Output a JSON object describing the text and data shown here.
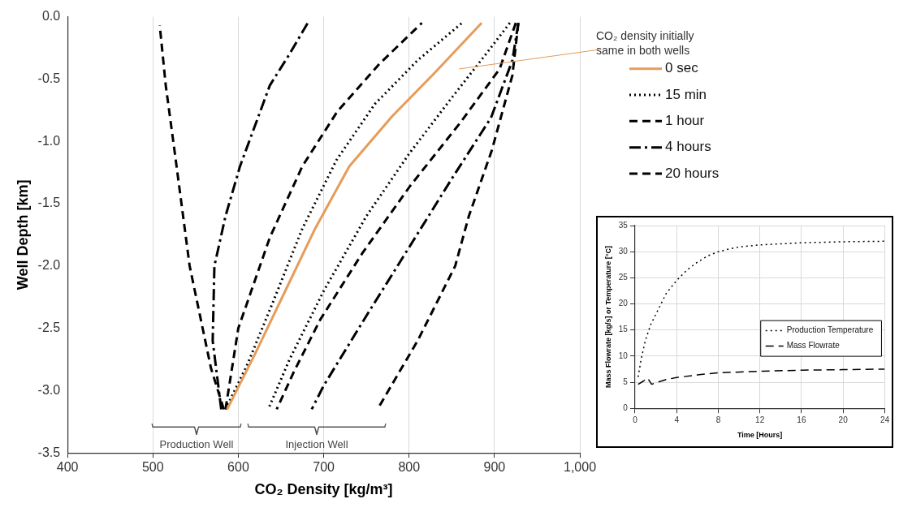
{
  "chart_data": [
    {
      "type": "line",
      "xlabel": "CO₂ Density [kg/m³]",
      "ylabel": "Well Depth [km]",
      "xlim": [
        400,
        1000
      ],
      "xticks": [
        400,
        500,
        600,
        700,
        800,
        900,
        {
          "value": 1000,
          "label": "1,000"
        }
      ],
      "ylim": [
        -3.5,
        0
      ],
      "yticks": [
        {
          "value": -3.5,
          "label": "-3.5"
        },
        {
          "value": -3,
          "label": "-3.0"
        },
        {
          "value": -2.5,
          "label": "-2.5"
        },
        {
          "value": -2,
          "label": "-2.0"
        },
        {
          "value": -1.5,
          "label": "-1.5"
        },
        {
          "value": -1,
          "label": "-1.0"
        },
        {
          "value": -0.5,
          "label": "-0.5"
        },
        {
          "value": 0,
          "label": "0.0"
        }
      ],
      "grid": "x",
      "legend": "right",
      "series": [
        {
          "name": "0 sec",
          "color": "#e69c5a",
          "line_style": "solid",
          "x": [
            587,
            620,
            655,
            690,
            730,
            780,
            830,
            885
          ],
          "values": [
            -3.15,
            -2.7,
            -2.2,
            -1.7,
            -1.2,
            -0.8,
            -0.45,
            -0.05
          ]
        },
        {
          "name": "15 min",
          "color": "#000000",
          "line_style": "dotted",
          "x": [
            585,
            610,
            640,
            675,
            715,
            760,
            810,
            862,
            null,
            918,
            890,
            850,
            800,
            750,
            700,
            660,
            635
          ],
          "values": [
            -3.15,
            -2.8,
            -2.3,
            -1.7,
            -1.15,
            -0.7,
            -0.35,
            -0.05,
            null,
            -0.05,
            -0.3,
            -0.65,
            -1.1,
            -1.6,
            -2.2,
            -2.75,
            -3.15
          ]
        },
        {
          "name": "1 hour",
          "color": "#000000",
          "line_style": "dashed",
          "x": [
            585,
            600,
            637,
            675,
            716,
            765,
            815,
            null,
            925,
            906,
            860,
            801,
            745,
            696,
            665,
            645
          ],
          "values": [
            -3.15,
            -2.5,
            -1.77,
            -1.2,
            -0.76,
            -0.38,
            -0.05,
            null,
            -0.05,
            -0.42,
            -0.85,
            -1.36,
            -1.9,
            -2.43,
            -2.85,
            -3.15
          ]
        },
        {
          "name": "4 hours",
          "color": "#000000",
          "line_style": "dashdot",
          "x": [
            580,
            570,
            572,
            585,
            602,
            637,
            660,
            683,
            null,
            928,
            921,
            896,
            850,
            801,
            750,
            700,
            686
          ],
          "values": [
            -3.15,
            -2.6,
            -2.0,
            -1.6,
            -1.2,
            -0.55,
            -0.3,
            -0.03,
            null,
            -0.05,
            -0.35,
            -0.81,
            -1.3,
            -1.84,
            -2.4,
            -2.96,
            -3.15
          ]
        },
        {
          "name": "20 hours",
          "color": "#000000",
          "line_style": "dashed",
          "x": [
            583,
            568,
            543,
            525,
            515,
            508,
            null,
            928,
            921,
            897,
            870,
            854,
            810,
            763
          ],
          "values": [
            -3.15,
            -2.82,
            -2.0,
            -1.06,
            -0.55,
            -0.07,
            null,
            -0.05,
            -0.47,
            -1.07,
            -1.6,
            -2.0,
            -2.6,
            -3.15
          ]
        }
      ],
      "annotations": [
        "CO₂ density initially same in both wells",
        "Production Well",
        "Injection Well"
      ]
    },
    {
      "type": "line",
      "xlabel": "Time [Hours]",
      "ylabel": "Mass Flowrate [kg/s] or Temperature [°C]",
      "xlim": [
        0,
        24
      ],
      "xticks": [
        0,
        4,
        8,
        12,
        16,
        20,
        24
      ],
      "ylim": [
        0,
        35
      ],
      "yticks": [
        0,
        5,
        10,
        15,
        20,
        25,
        30,
        35
      ],
      "grid": true,
      "legend": "right",
      "series": [
        {
          "name": "Production Temperature",
          "color": "#000000",
          "line_style": "dotted",
          "x": [
            0.3,
            0.6,
            1,
            1.5,
            2,
            3,
            4,
            5,
            6,
            7,
            8,
            9,
            10,
            12,
            16,
            20,
            24
          ],
          "values": [
            6,
            9.5,
            13,
            16,
            18,
            22,
            24.5,
            26.5,
            28,
            29.2,
            30,
            30.5,
            30.9,
            31.3,
            31.7,
            31.9,
            32
          ]
        },
        {
          "name": "Mass Flowrate",
          "color": "#000000",
          "line_style": "dashed",
          "x": [
            0.3,
            0.8,
            1.2,
            1.6,
            2,
            3,
            4,
            6,
            8,
            12,
            16,
            20,
            24
          ],
          "values": [
            4.6,
            5.2,
            5.8,
            4.6,
            4.9,
            5.5,
            5.9,
            6.4,
            6.8,
            7.1,
            7.3,
            7.4,
            7.5
          ]
        }
      ]
    }
  ]
}
